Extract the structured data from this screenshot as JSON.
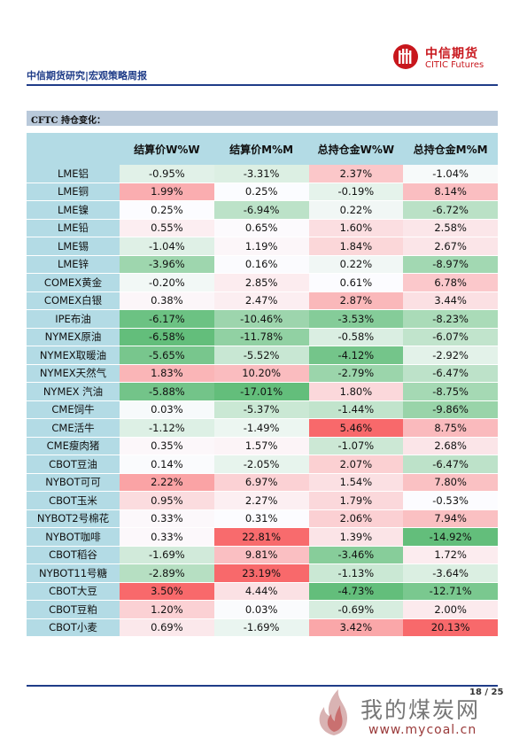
{
  "header": {
    "brand_cn": "中信期货",
    "brand_en": "CITIC Futures",
    "report_title": "中信期货研究|宏观策略周报"
  },
  "section": {
    "title": "CFTC 持仓变化："
  },
  "table": {
    "columns": [
      "结算价W%W",
      "结算价M%M",
      "总持仓金W%W",
      "总持仓金M%M"
    ],
    "rows": [
      {
        "name": "LME铝",
        "values": [
          "-0.95%",
          "-3.31%",
          "2.37%",
          "-1.04%"
        ]
      },
      {
        "name": "LME铜",
        "values": [
          "1.99%",
          "0.25%",
          "-0.19%",
          "8.14%"
        ]
      },
      {
        "name": "LME镍",
        "values": [
          "0.25%",
          "-6.94%",
          "0.22%",
          "-6.72%"
        ]
      },
      {
        "name": "LME铅",
        "values": [
          "0.55%",
          "0.65%",
          "1.60%",
          "2.58%"
        ]
      },
      {
        "name": "LME锡",
        "values": [
          "-1.04%",
          "1.19%",
          "1.84%",
          "2.67%"
        ]
      },
      {
        "name": "LME锌",
        "values": [
          "-3.96%",
          "0.16%",
          "0.22%",
          "-8.97%"
        ]
      },
      {
        "name": "COMEX黄金",
        "values": [
          "-0.20%",
          "2.85%",
          "0.61%",
          "6.78%"
        ]
      },
      {
        "name": "COMEX白银",
        "values": [
          "0.38%",
          "2.47%",
          "2.87%",
          "3.44%"
        ]
      },
      {
        "name": "IPE布油",
        "values": [
          "-6.17%",
          "-10.46%",
          "-3.53%",
          "-8.23%"
        ]
      },
      {
        "name": "NYMEX原油",
        "values": [
          "-6.58%",
          "-11.78%",
          "-0.58%",
          "-6.07%"
        ]
      },
      {
        "name": "NYMEX取暖油",
        "values": [
          "-5.65%",
          "-5.52%",
          "-4.12%",
          "-2.92%"
        ]
      },
      {
        "name": "NYMEX天然气",
        "values": [
          "1.83%",
          "10.20%",
          "-2.79%",
          "-6.47%"
        ]
      },
      {
        "name": "NYMEX 汽油",
        "values": [
          "-5.88%",
          "-17.01%",
          "1.80%",
          "-8.75%"
        ]
      },
      {
        "name": "CME饲牛",
        "values": [
          "0.03%",
          "-5.37%",
          "-1.44%",
          "-9.86%"
        ]
      },
      {
        "name": "CME活牛",
        "values": [
          "-1.12%",
          "-1.49%",
          "5.46%",
          "8.75%"
        ]
      },
      {
        "name": "CME瘦肉猪",
        "values": [
          "0.35%",
          "1.57%",
          "-1.07%",
          "2.68%"
        ]
      },
      {
        "name": "CBOT豆油",
        "values": [
          "0.14%",
          "-2.05%",
          "2.07%",
          "-6.47%"
        ]
      },
      {
        "name": "NYBOT可可",
        "values": [
          "2.22%",
          "6.97%",
          "1.54%",
          "7.80%"
        ]
      },
      {
        "name": "CBOT玉米",
        "values": [
          "0.95%",
          "2.27%",
          "1.79%",
          "-0.53%"
        ]
      },
      {
        "name": "NYBOT2号棉花",
        "values": [
          "0.33%",
          "0.31%",
          "2.06%",
          "7.94%"
        ]
      },
      {
        "name": "NYBOT咖啡",
        "values": [
          "0.33%",
          "22.81%",
          "1.39%",
          "-14.92%"
        ]
      },
      {
        "name": "CBOT稻谷",
        "values": [
          "-1.69%",
          "9.81%",
          "-3.46%",
          "1.72%"
        ]
      },
      {
        "name": "NYBOT11号糖",
        "values": [
          "-2.89%",
          "23.19%",
          "-1.13%",
          "-3.64%"
        ]
      },
      {
        "name": "CBOT大豆",
        "values": [
          "3.50%",
          "4.44%",
          "-4.73%",
          "-12.71%"
        ]
      },
      {
        "name": "CBOT豆粕",
        "values": [
          "1.20%",
          "0.03%",
          "-0.69%",
          "2.00%"
        ]
      },
      {
        "name": "CBOT小麦",
        "values": [
          "0.69%",
          "-1.69%",
          "3.42%",
          "20.13%"
        ]
      }
    ]
  },
  "colors": {
    "positive": "#f8696b",
    "negative": "#63be7b",
    "neutral": "#fcfcff",
    "accent": "#1f3c88",
    "brand_red": "#c8171d"
  },
  "footer": {
    "page": "18 / 25"
  },
  "watermark": {
    "text": "我的煤炭网",
    "url": "www.mycoal.cn"
  }
}
